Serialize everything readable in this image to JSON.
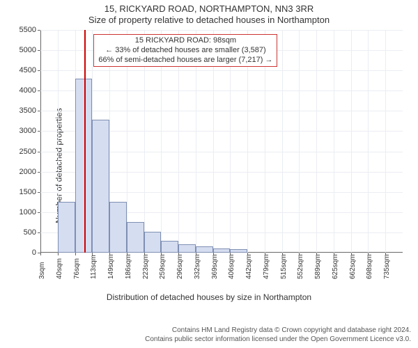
{
  "title_line1": "15, RICKYARD ROAD, NORTHAMPTON, NN3 3RR",
  "title_line2": "Size of property relative to detached houses in Northampton",
  "ylabel": "Number of detached properties",
  "xlabel": "Distribution of detached houses by size in Northampton",
  "footer_line1": "Contains HM Land Registry data © Crown copyright and database right 2024.",
  "footer_line2": "Contains public sector information licensed under the Open Government Licence v3.0.",
  "chart": {
    "type": "histogram",
    "background_color": "#ffffff",
    "grid_color": "#eaedf2",
    "axis_color": "#666666",
    "bar_fill": "#d5ddf0",
    "bar_border": "#7e8fb3",
    "marker_color": "#cc0000",
    "ylim": [
      0,
      5500
    ],
    "ytick_step": 500,
    "x_categories": [
      "3sqm",
      "40sqm",
      "76sqm",
      "113sqm",
      "149sqm",
      "186sqm",
      "223sqm",
      "259sqm",
      "296sqm",
      "332sqm",
      "369sqm",
      "406sqm",
      "442sqm",
      "479sqm",
      "515sqm",
      "552sqm",
      "589sqm",
      "625sqm",
      "662sqm",
      "698sqm",
      "735sqm"
    ],
    "bar_values": [
      0,
      1260,
      4300,
      3280,
      1250,
      750,
      520,
      300,
      200,
      150,
      100,
      90,
      0,
      0,
      0,
      0,
      0,
      0,
      0,
      0,
      0
    ],
    "marker_bin_index": 2,
    "marker_fraction_in_bin": 0.6
  },
  "annotation": {
    "line1": "15 RICKYARD ROAD: 98sqm",
    "line2": "← 33% of detached houses are smaller (3,587)",
    "line3": "66% of semi-detached houses are larger (7,217) →",
    "border_color": "#cc3333"
  },
  "fonts": {
    "title_size": 13,
    "label_size": 12,
    "tick_size": 11,
    "annotation_size": 11,
    "footer_size": 10
  }
}
